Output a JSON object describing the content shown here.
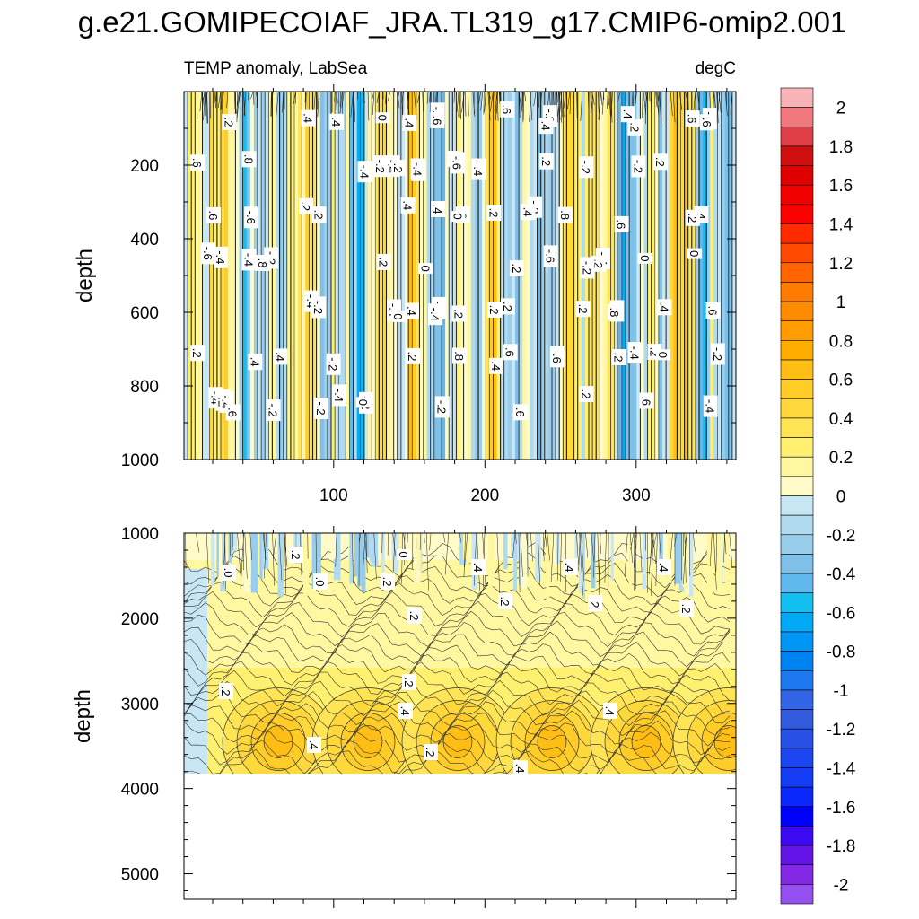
{
  "title": "g.e21.GOMIPECOIAF_JRA.TL319_g17.CMIP6-omip2.001",
  "colorbar": {
    "levels": [
      "2",
      "1.8",
      "1.6",
      "1.4",
      "1.2",
      "1",
      "0.8",
      "0.6",
      "0.4",
      "0.2",
      "0",
      "-0.2",
      "-0.4",
      "-0.6",
      "-0.8",
      "-1",
      "-1.2",
      "-1.4",
      "-1.6",
      "-1.8",
      "-2"
    ],
    "colors": [
      "#f9b3b8",
      "#f0787e",
      "#e03e48",
      "#d01010",
      "#e00000",
      "#f20000",
      "#ff0000",
      "#ff2a00",
      "#ff4a00",
      "#ff6400",
      "#ff7c00",
      "#ff8c00",
      "#ff9c00",
      "#ffae00",
      "#ffbe14",
      "#ffcc28",
      "#ffd83c",
      "#ffe455",
      "#fff070",
      "#fff8a0",
      "#fffbc8",
      "#c8e6f3",
      "#b0daf0",
      "#98cdec",
      "#7ec0e8",
      "#60b8ec",
      "#14bef0",
      "#00aaf5",
      "#0096f5",
      "#0082f0",
      "#1e78f0",
      "#3264e6",
      "#325adc",
      "#2850e6",
      "#1e46f0",
      "#143cf5",
      "#0a28fa",
      "#0000ff",
      "#3c0af0",
      "#6414e6",
      "#8228e6",
      "#9650f0"
    ]
  },
  "chart_data": [
    {
      "type": "heatmap",
      "panel": "upper",
      "left_label": "TEMP anomaly, LabSea",
      "right_label": "degC",
      "ylabel": "depth",
      "ylim": [
        0,
        1000
      ],
      "yticks": [
        "200",
        "400",
        "600",
        "800",
        "1000"
      ],
      "xlim": [
        1,
        366
      ],
      "xticks": [
        "100",
        "200",
        "300"
      ],
      "contour_labels": [
        ".6",
        ".2",
        ".2",
        "-.2",
        "-.4",
        ".2",
        ".2",
        "-.2",
        ".6",
        ".4",
        "-.6",
        "-.2",
        ".6",
        "-.4",
        ".4",
        ".8",
        "-.2",
        "0",
        "-.2",
        ".2",
        "-.4",
        ".4",
        "-.4",
        ".4",
        "-.6",
        ".4",
        ".2",
        "-.2",
        "0",
        ".6",
        ".4",
        "-.4",
        ".2",
        "-.6",
        "-.2",
        ".6",
        "-.2",
        ".8",
        "-.4",
        ".4",
        ".4",
        "0",
        "-.6",
        ".2",
        ".4",
        "-.4",
        ".2",
        "-.4",
        "-.4",
        ".2",
        "-.2",
        ".2",
        "0",
        ".2",
        "-.2",
        ".6",
        "-.2",
        "-.6",
        ".2",
        "0",
        "-.4",
        ".2",
        "-.4",
        ".6",
        "-.2",
        ".6",
        ".2",
        "-.4",
        "0",
        "-.2",
        ".4",
        "-.2",
        ".8",
        ".8",
        ".2",
        ".4",
        "-.2",
        ".4",
        "-.4",
        ".2",
        "0",
        "-.4",
        ".8",
        "-.2",
        ".6",
        ".2",
        "-.6",
        ".2",
        ".6",
        "-.2",
        ".6",
        ".2",
        "-.4",
        "0",
        "-.2",
        "0",
        ".4",
        ".6",
        ".4",
        "-.4",
        ".6",
        ".2",
        ".8"
      ]
    },
    {
      "type": "heatmap",
      "panel": "lower",
      "ylabel": "depth",
      "ylim": [
        1000,
        5300
      ],
      "yticks": [
        "1000",
        "2000",
        "3000",
        "4000",
        "5000"
      ],
      "data_bottom_depth": 3850,
      "contour_labels": [
        ".0",
        ".2",
        ".0",
        ".2",
        "0",
        ".4",
        ".4",
        ".4",
        ".2",
        ".2",
        ".2",
        ".2",
        ".2",
        ".2",
        ".4",
        ".4",
        ".2",
        ".4",
        ".4"
      ]
    }
  ]
}
